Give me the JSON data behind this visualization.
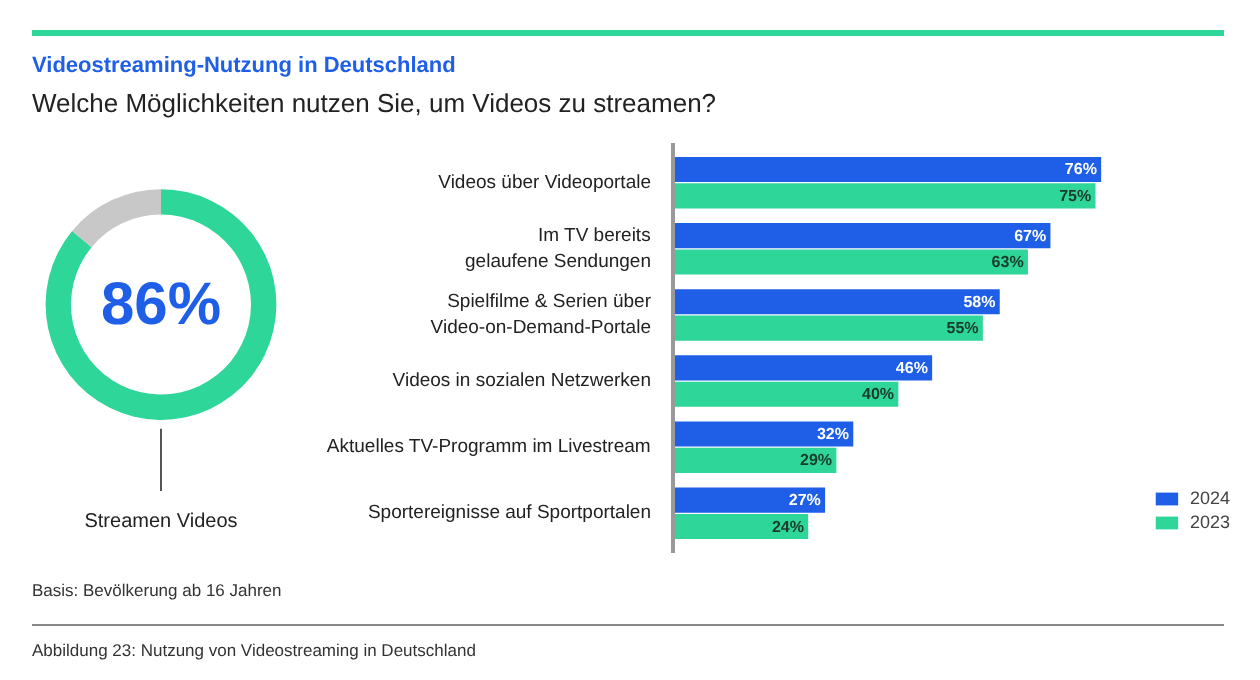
{
  "chart_data": [
    {
      "type": "donut",
      "categories": [
        "Streamen Videos",
        null
      ],
      "values": [
        86,
        14
      ],
      "colors": [
        "#2ed69a",
        "#c8c8c8"
      ],
      "value_labels": [
        "86%",
        null
      ]
    },
    {
      "type": "bar",
      "orientation": "horizontal",
      "title": "Videostreaming-Nutzung in Deutschland",
      "subtitle": "Welche Möglichkeiten nutzen Sie, um Videos zu streamen?",
      "categories": [
        "Videos über Videoportale",
        "Im TV bereits\ngelaufene Sendungen",
        "Spielfilme & Serien über\nVideo-on-Demand-Portale",
        "Videos in sozialen Netzwerken",
        "Aktuelles TV-Programm im Livestream",
        "Sportereignisse auf Sportportalen"
      ],
      "series": [
        {
          "name": "2024",
          "color": "#1f5fe8",
          "values": [
            76,
            67,
            58,
            46,
            32,
            27
          ],
          "value_labels": [
            "76%",
            "67%",
            "58%",
            "46%",
            "32%",
            "27%"
          ]
        },
        {
          "name": "2023",
          "color": "#2ed69a",
          "values": [
            75,
            63,
            55,
            40,
            29,
            24
          ],
          "value_labels": [
            "75%",
            "63%",
            "55%",
            "40%",
            "29%",
            "24%"
          ]
        }
      ],
      "legend": "bottom right",
      "annotations": [
        "Basis: Bevölkerung ab 16 Jahren",
        "Abbildung 23: Nutzung von Videostreaming in Deutschland"
      ]
    }
  ]
}
